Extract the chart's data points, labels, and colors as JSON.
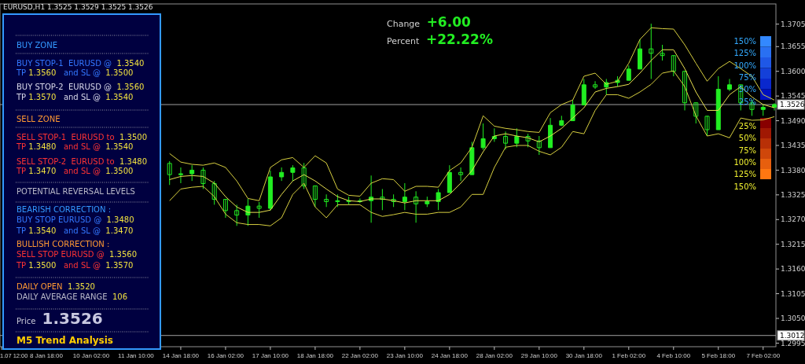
{
  "chart_data": {
    "type": "candlestick",
    "title": "EURUSD,H1  1.3525 1.3529 1.3525 1.3526",
    "color": "#22ee22",
    "categories": [
      "1.07 12:00",
      null,
      null,
      null,
      "8 Jan 18:00",
      null,
      null,
      null,
      "10 Jan 02:00",
      null,
      null,
      null,
      "11 Jan 10:00",
      null,
      null,
      null,
      "14 Jan 18:00",
      null,
      null,
      null,
      "16 Jan 02:00",
      null,
      null,
      null,
      "17 Jan 10:00",
      null,
      null,
      null,
      "18 Jan 18:00",
      null,
      null,
      null,
      "22 Jan 02:00",
      null,
      null,
      null,
      "23 Jan 10:00",
      null,
      null,
      null,
      "24 Jan 18:00",
      null,
      null,
      null,
      "28 Jan 02:00",
      null,
      null,
      null,
      "29 Jan 10:00",
      null,
      null,
      null,
      "30 Jan 18:00",
      null,
      null,
      null,
      "1 Feb 02:00",
      null,
      null,
      null,
      "4 Feb 10:00",
      null,
      null,
      null,
      "5 Feb 18:00",
      null,
      null,
      null,
      "7 Feb 02:00",
      null
    ],
    "ohlc": [
      null,
      null,
      null,
      null,
      null,
      null,
      null,
      null,
      null,
      null,
      null,
      null,
      null,
      null,
      null,
      [
        1.3395,
        1.34,
        1.3347,
        1.337
      ],
      [
        1.337,
        1.3386,
        1.3351,
        1.3372
      ],
      [
        1.3372,
        1.3391,
        1.3356,
        1.338
      ],
      [
        1.338,
        1.3386,
        1.3338,
        1.335
      ],
      [
        1.335,
        1.3356,
        1.3303,
        1.3315
      ],
      [
        1.3315,
        1.3316,
        1.3274,
        1.329
      ],
      [
        1.329,
        1.3303,
        1.3256,
        1.328
      ],
      [
        1.328,
        1.3316,
        1.3256,
        1.33
      ],
      [
        1.33,
        1.3309,
        1.3274,
        1.3295
      ],
      [
        1.3295,
        1.3379,
        1.329,
        1.3365
      ],
      [
        1.3365,
        1.3386,
        1.3356,
        1.3375
      ],
      [
        1.3375,
        1.3391,
        1.3356,
        1.3385
      ],
      [
        1.3385,
        1.3396,
        1.3338,
        1.3345
      ],
      [
        1.3345,
        1.3345,
        1.3298,
        1.3315
      ],
      [
        1.3315,
        1.3326,
        1.3298,
        1.331
      ],
      [
        1.331,
        1.3326,
        1.3298,
        1.3312
      ],
      [
        1.3312,
        1.3321,
        1.3303,
        1.331
      ],
      [
        1.331,
        1.3317,
        1.3307,
        1.3312
      ],
      [
        1.3312,
        1.3368,
        1.3263,
        1.332
      ],
      [
        1.332,
        1.3338,
        1.3291,
        1.3315
      ],
      [
        1.3315,
        1.3326,
        1.3298,
        1.331
      ],
      [
        1.331,
        1.3351,
        1.3291,
        1.332
      ],
      [
        1.332,
        1.3333,
        1.3263,
        1.3305
      ],
      [
        1.3305,
        1.3321,
        1.3298,
        1.331
      ],
      [
        1.331,
        1.3338,
        1.3291,
        1.333
      ],
      [
        1.333,
        1.3391,
        1.333,
        1.3375
      ],
      [
        1.3375,
        1.3386,
        1.3356,
        1.337
      ],
      [
        1.337,
        1.3443,
        1.337,
        1.343
      ],
      [
        1.343,
        1.3484,
        1.3425,
        1.345
      ],
      [
        1.345,
        1.3473,
        1.3443,
        1.3455
      ],
      [
        1.3455,
        1.3466,
        1.3426,
        1.344
      ],
      [
        1.344,
        1.3473,
        1.3431,
        1.3455
      ],
      [
        1.3455,
        1.3461,
        1.3431,
        1.3445
      ],
      [
        1.3445,
        1.3456,
        1.3414,
        1.343
      ],
      [
        1.343,
        1.3496,
        1.343,
        1.348
      ],
      [
        1.348,
        1.3501,
        1.3478,
        1.349
      ],
      [
        1.349,
        1.3536,
        1.349,
        1.3525
      ],
      [
        1.3525,
        1.3583,
        1.3525,
        1.357
      ],
      [
        1.357,
        1.3578,
        1.3561,
        1.3565
      ],
      [
        1.3565,
        1.3583,
        1.3548,
        1.3575
      ],
      [
        1.3575,
        1.3589,
        1.3566,
        1.358
      ],
      [
        1.358,
        1.3613,
        1.358,
        1.3605
      ],
      [
        1.3605,
        1.3671,
        1.3605,
        1.365
      ],
      [
        1.365,
        1.3706,
        1.3583,
        1.364
      ],
      [
        1.364,
        1.3659,
        1.3624,
        1.3635
      ],
      [
        1.3635,
        1.3635,
        1.3589,
        1.36
      ],
      [
        1.36,
        1.36,
        1.3513,
        1.353
      ],
      [
        1.353,
        1.353,
        1.3484,
        1.35
      ],
      [
        1.35,
        1.3501,
        1.3456,
        1.347
      ],
      [
        1.347,
        1.3589,
        1.347,
        1.356
      ],
      [
        1.356,
        1.3583,
        1.3556,
        1.357
      ],
      [
        1.357,
        1.357,
        1.3513,
        1.353
      ],
      [
        1.353,
        1.3536,
        1.3501,
        1.3515
      ],
      [
        1.3515,
        1.3526,
        1.3501,
        1.352
      ],
      [
        1.352,
        1.3529,
        1.3513,
        1.3526
      ]
    ],
    "series": [
      {
        "type": "line",
        "color": "#d8d040",
        "values": [
          null,
          null,
          null,
          null,
          null,
          null,
          null,
          null,
          null,
          null,
          null,
          null,
          null,
          null,
          null,
          1.3417,
          1.3398,
          1.3393,
          1.3391,
          1.3396,
          1.3386,
          1.3356,
          1.3317,
          1.3312,
          1.3386,
          1.3403,
          1.3408,
          1.3386,
          1.3412,
          1.3396,
          1.3338,
          1.3324,
          1.3322,
          1.3351,
          1.3361,
          1.3359,
          1.3333,
          1.3344,
          1.3344,
          1.3342,
          1.3379,
          1.3396,
          1.3431,
          1.3501,
          1.3478,
          1.3473,
          1.347,
          1.3466,
          1.3464,
          1.3508,
          1.3526,
          1.3536,
          1.3589,
          1.3596,
          1.3571,
          1.3578,
          1.3618,
          1.3671,
          1.3697,
          1.3695,
          1.3694,
          1.3659,
          1.3618,
          1.3578,
          1.3606,
          1.3622,
          1.3606,
          1.3589,
          1.3548,
          1.3536
        ]
      },
      {
        "type": "line",
        "color": "#e8e050",
        "values": [
          null,
          null,
          null,
          null,
          null,
          null,
          null,
          null,
          null,
          null,
          null,
          null,
          null,
          null,
          null,
          1.3359,
          1.3366,
          1.3368,
          1.3366,
          1.3351,
          1.3321,
          1.3298,
          1.3286,
          1.3286,
          1.3291,
          1.3326,
          1.3356,
          1.337,
          1.3356,
          1.3338,
          1.3321,
          1.3312,
          1.331,
          1.3316,
          1.3316,
          1.3312,
          1.3307,
          1.3312,
          1.3312,
          1.3312,
          1.3326,
          1.3351,
          1.3379,
          1.3421,
          1.3456,
          1.3461,
          1.3456,
          1.3452,
          1.3443,
          1.3456,
          1.3473,
          1.3496,
          1.3519,
          1.3554,
          1.3562,
          1.3566,
          1.3571,
          1.3596,
          1.3624,
          1.3648,
          1.3648,
          1.3606,
          1.3554,
          1.3513,
          1.3513,
          1.3548,
          1.3566,
          1.3543,
          1.3526,
          1.3519
        ]
      },
      {
        "type": "line",
        "color": "#d8d040",
        "values": [
          null,
          null,
          null,
          null,
          null,
          null,
          null,
          null,
          null,
          null,
          null,
          null,
          null,
          null,
          null,
          1.3312,
          1.3338,
          1.3342,
          1.3344,
          1.3321,
          1.3282,
          1.3263,
          1.3259,
          1.3259,
          1.3256,
          1.3274,
          1.3326,
          1.3351,
          1.3298,
          1.3274,
          1.3303,
          1.3303,
          1.3303,
          1.3286,
          1.3277,
          1.3281,
          1.3286,
          1.3282,
          1.3282,
          1.3286,
          1.3286,
          1.3298,
          1.3326,
          1.3326,
          1.3386,
          1.3431,
          1.3435,
          1.3435,
          1.3422,
          1.3414,
          1.3431,
          1.3466,
          1.3461,
          1.3513,
          1.3548,
          1.3548,
          1.354,
          1.3554,
          1.3571,
          1.3596,
          1.3601,
          1.3566,
          1.3501,
          1.3456,
          1.3461,
          1.3452,
          1.3496,
          1.3491,
          1.3492,
          1.3499
        ]
      }
    ],
    "ylim": [
      1.2987,
      1.375
    ],
    "yticks": [
      1.2995,
      {
        "value": 1.305,
        "label": "1.3050"
      },
      1.3105,
      {
        "value": 1.316,
        "label": "1.3160"
      },
      1.3215,
      {
        "value": 1.327,
        "label": "1.3270"
      },
      1.3325,
      {
        "value": 1.338,
        "label": "1.3380"
      },
      1.3435,
      {
        "value": 1.349,
        "label": "1.3490"
      },
      1.3545,
      {
        "value": 1.36,
        "label": "1.3600"
      },
      1.3655,
      1.3705
    ],
    "ref_lines": [
      {
        "axis": "y",
        "value": 1.3526,
        "label": "1.3526",
        "color": "#a0a0a0"
      },
      {
        "axis": "y",
        "value": 1.3012,
        "label": "1.3012",
        "color": "#a0a0a0"
      }
    ],
    "annotations": [
      "BUY ZONE",
      "BUY STOP-1  EURUSD @  1.3540",
      "TP 1.3560   and SL @  1.3500",
      "BUY STOP-2  EURUSD @  1.3560",
      "TP 1.3570   and SL @  1.3540",
      "SELL ZONE",
      "SELL STOP-1  EURUSD to  1.3500",
      "TP 1.3480   and SL @  1.3540",
      "SELL STOP-2  EURUSD to  1.3480",
      "TP 1.3470   and SL @  1.3500",
      "POTENTIAL REVERSAL LEVELS",
      "BEARISH CORRECTION :",
      "BUY STOP EURUSD @  1.3480",
      "TP 1.3540   and SL @  1.3470",
      "BULLISH CORRECTION :",
      "SELL STOP EURUSD @  1.3560",
      "TP 1.3500   and SL @  1.3570",
      "DAILY OPEN  1.3520",
      "DAILY AVERAGE RANGE  106",
      "Price 1.3526",
      "M5 Trend Analysis",
      "Change +6.00",
      "Percent +22.22%",
      "150%",
      "125%",
      "100%",
      "75%",
      "50%",
      "25%",
      "25%",
      "50%",
      "75%",
      "100%",
      "125%",
      "150%"
    ]
  }
}
